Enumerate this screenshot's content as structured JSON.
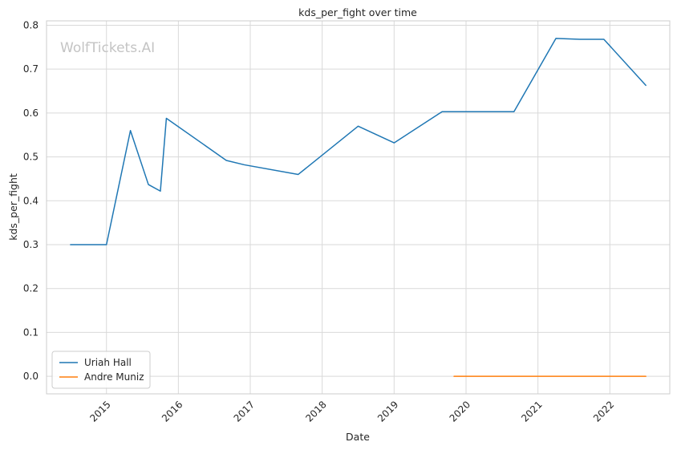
{
  "chart_data": {
    "type": "line",
    "title": "kds_per_fight over time",
    "xlabel": "Date",
    "ylabel": "kds_per_fight",
    "watermark": "WolfTickets.AI",
    "x_ticks": [
      "2015",
      "2016",
      "2017",
      "2018",
      "2019",
      "2020",
      "2021",
      "2022"
    ],
    "y_ticks": [
      "0.0",
      "0.1",
      "0.2",
      "0.3",
      "0.4",
      "0.5",
      "0.6",
      "0.7",
      "0.8"
    ],
    "xlim": [
      "2014-03",
      "2022-11"
    ],
    "ylim": [
      -0.04,
      0.81
    ],
    "grid": true,
    "legend_position": "lower-left",
    "series": [
      {
        "name": "Uriah Hall",
        "color": "#1f77b4",
        "points": [
          {
            "x": "2014-07",
            "y": 0.3
          },
          {
            "x": "2015-01",
            "y": 0.3
          },
          {
            "x": "2015-05",
            "y": 0.56
          },
          {
            "x": "2015-08",
            "y": 0.437
          },
          {
            "x": "2015-10",
            "y": 0.422
          },
          {
            "x": "2015-11",
            "y": 0.588
          },
          {
            "x": "2016-09",
            "y": 0.492
          },
          {
            "x": "2016-12",
            "y": 0.482
          },
          {
            "x": "2017-09",
            "y": 0.46
          },
          {
            "x": "2018-07",
            "y": 0.57
          },
          {
            "x": "2019-01",
            "y": 0.532
          },
          {
            "x": "2019-09",
            "y": 0.603
          },
          {
            "x": "2020-09",
            "y": 0.603
          },
          {
            "x": "2021-04",
            "y": 0.77
          },
          {
            "x": "2021-08",
            "y": 0.768
          },
          {
            "x": "2021-12",
            "y": 0.768
          },
          {
            "x": "2022-07",
            "y": 0.663
          }
        ]
      },
      {
        "name": "Andre Muniz",
        "color": "#ff7f0e",
        "points": [
          {
            "x": "2019-11",
            "y": 0.0
          },
          {
            "x": "2022-07",
            "y": 0.0
          }
        ]
      }
    ]
  }
}
